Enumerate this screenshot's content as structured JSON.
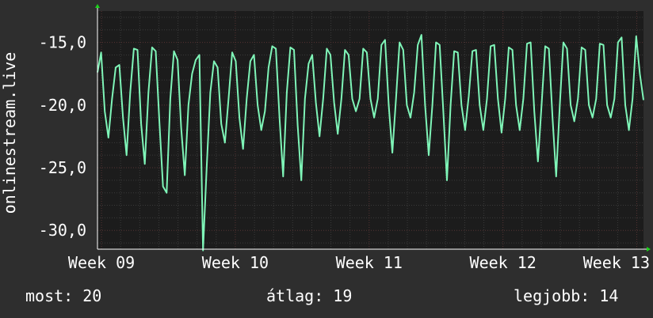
{
  "colors": {
    "background": "#2e2e2e",
    "plot_background": "#1c1c1c",
    "grid_minor": "#3a3a3a",
    "grid_major": "#553333",
    "line": "#7ff5b8",
    "axis_arrow": "#1bd21b",
    "text": "#ffffff"
  },
  "footer": {
    "current": "most: 20",
    "average": "átlag: 19",
    "max": "legjobb: 14"
  },
  "chart_data": {
    "type": "line",
    "ylabel": "onlinestream.live",
    "ylim": [
      -31.5,
      -12.5
    ],
    "y_ticks": [
      -30,
      -25,
      -20,
      -15
    ],
    "y_tick_labels": [
      "-30,0",
      "-25,0",
      "-20,0",
      "-15,0"
    ],
    "x_range": [
      8.97,
      13.05
    ],
    "x_ticks": [
      9,
      10,
      11,
      12,
      13
    ],
    "x_tick_labels": [
      "Week 09",
      "Week 10",
      "Week 11",
      "Week 12",
      "Week 13"
    ],
    "grid": true,
    "series": [
      {
        "values": [
          -17.4,
          -15.8,
          -20.5,
          -22.6,
          -19.5,
          -17.0,
          -16.8,
          -21.0,
          -24.0,
          -19.0,
          -15.5,
          -15.6,
          -21.5,
          -24.7,
          -19.0,
          -15.4,
          -15.7,
          -21.3,
          -26.5,
          -27.0,
          -19.5,
          -15.7,
          -16.4,
          -21.8,
          -25.6,
          -20.0,
          -17.5,
          -16.4,
          -16.0,
          -31.6,
          -25.0,
          -19.0,
          -16.5,
          -17.0,
          -21.5,
          -23.0,
          -19.5,
          -15.8,
          -16.5,
          -21.0,
          -23.5,
          -19.5,
          -16.5,
          -16.0,
          -20.0,
          -22.0,
          -20.5,
          -17.0,
          -15.3,
          -15.5,
          -21.0,
          -25.7,
          -19.0,
          -15.4,
          -15.6,
          -21.6,
          -26.0,
          -19.5,
          -16.7,
          -16.0,
          -19.8,
          -22.5,
          -19.5,
          -15.5,
          -16.0,
          -19.8,
          -22.3,
          -19.5,
          -15.6,
          -16.0,
          -19.5,
          -20.5,
          -19.5,
          -15.5,
          -15.8,
          -19.5,
          -21.0,
          -19.5,
          -15.2,
          -14.8,
          -20.0,
          -23.8,
          -19.5,
          -15.0,
          -15.6,
          -20.0,
          -21.0,
          -19.0,
          -15.2,
          -14.4,
          -20.0,
          -24.0,
          -20.0,
          -15.0,
          -15.2,
          -20.5,
          -26.0,
          -20.0,
          -15.7,
          -15.8,
          -20.0,
          -22.0,
          -19.3,
          -15.7,
          -15.6,
          -20.0,
          -22.0,
          -19.5,
          -15.3,
          -15.2,
          -19.5,
          -22.2,
          -19.5,
          -15.4,
          -15.6,
          -20.0,
          -22.0,
          -19.5,
          -15.1,
          -15.0,
          -20.5,
          -24.5,
          -20.0,
          -15.3,
          -15.5,
          -21.0,
          -25.7,
          -20.0,
          -15.0,
          -15.5,
          -20.0,
          -21.3,
          -19.5,
          -15.4,
          -15.6,
          -20.0,
          -21.0,
          -19.5,
          -15.1,
          -15.2,
          -20.0,
          -21.0,
          -19.5,
          -15.0,
          -14.6,
          -20.0,
          -22.0,
          -19.5,
          -14.5,
          -17.5,
          -19.6
        ]
      }
    ]
  }
}
